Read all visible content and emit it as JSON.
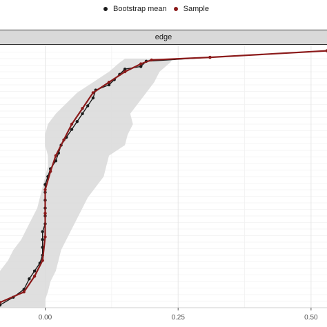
{
  "legend": {
    "items": [
      {
        "label": "Bootstrap mean",
        "color": "#1a1a1a"
      },
      {
        "label": "Sample",
        "color": "#8b1a1a"
      }
    ]
  },
  "chart_data": {
    "type": "line",
    "facet": "edge",
    "xlim": [
      -0.085,
      0.53
    ],
    "ylim": [
      0,
      1
    ],
    "x_ticks": [
      {
        "value": 0.0,
        "label": "0.00"
      },
      {
        "value": 0.25,
        "label": "0.25"
      },
      {
        "value": 0.5,
        "label": "0.50"
      }
    ],
    "grid": true,
    "legend_position": "top",
    "ribbon": {
      "color": "#d9d9d9",
      "y": [
        0.0,
        0.03,
        0.06,
        0.1,
        0.14,
        0.18,
        0.22,
        0.26,
        0.3,
        0.34,
        0.38,
        0.42,
        0.46,
        0.5,
        0.54,
        0.58,
        0.62,
        0.66,
        0.7,
        0.74,
        0.78,
        0.82,
        0.86,
        0.9,
        0.935,
        0.95
      ],
      "lo": [
        -0.085,
        -0.085,
        -0.085,
        -0.085,
        -0.085,
        -0.07,
        -0.06,
        -0.045,
        -0.035,
        -0.025,
        -0.015,
        -0.01,
        -0.005,
        0.0,
        0.005,
        0.005,
        0.0,
        0.0,
        0.005,
        0.02,
        0.04,
        0.06,
        0.09,
        0.12,
        0.14,
        0.15
      ],
      "hi": [
        0.0,
        0.0,
        0.005,
        0.01,
        0.02,
        0.025,
        0.03,
        0.04,
        0.05,
        0.06,
        0.07,
        0.08,
        0.095,
        0.11,
        0.115,
        0.12,
        0.15,
        0.155,
        0.165,
        0.16,
        0.175,
        0.19,
        0.205,
        0.215,
        0.235,
        0.24
      ]
    },
    "series": [
      {
        "name": "Bootstrap mean",
        "color": "#1a1a1a",
        "points": [
          [
            -0.085,
            0.01
          ],
          [
            -0.06,
            0.04
          ],
          [
            -0.04,
            0.07
          ],
          [
            -0.03,
            0.11
          ],
          [
            -0.02,
            0.14
          ],
          [
            -0.01,
            0.17
          ],
          [
            -0.005,
            0.2
          ],
          [
            -0.005,
            0.23
          ],
          [
            -0.005,
            0.26
          ],
          [
            -0.005,
            0.29
          ],
          [
            0.0,
            0.32
          ],
          [
            0.0,
            0.35
          ],
          [
            0.0,
            0.38
          ],
          [
            0.0,
            0.41
          ],
          [
            0.0,
            0.44
          ],
          [
            0.0,
            0.47
          ],
          [
            0.005,
            0.5
          ],
          [
            0.01,
            0.53
          ],
          [
            0.02,
            0.56
          ],
          [
            0.025,
            0.59
          ],
          [
            0.03,
            0.62
          ],
          [
            0.04,
            0.65
          ],
          [
            0.05,
            0.68
          ],
          [
            0.06,
            0.71
          ],
          [
            0.07,
            0.74
          ],
          [
            0.08,
            0.77
          ],
          [
            0.09,
            0.8
          ],
          [
            0.095,
            0.83
          ],
          [
            0.12,
            0.85
          ],
          [
            0.13,
            0.87
          ],
          [
            0.14,
            0.89
          ],
          [
            0.15,
            0.91
          ],
          [
            0.18,
            0.92
          ],
          [
            0.19,
            0.94
          ],
          [
            0.31,
            0.955
          ],
          [
            0.53,
            0.98
          ]
        ]
      },
      {
        "name": "Sample",
        "color": "#8b1a1a",
        "points": [
          [
            -0.085,
            0.02
          ],
          [
            -0.04,
            0.06
          ],
          [
            -0.02,
            0.12
          ],
          [
            -0.005,
            0.18
          ],
          [
            0.0,
            0.27
          ],
          [
            0.0,
            0.36
          ],
          [
            0.0,
            0.45
          ],
          [
            0.01,
            0.52
          ],
          [
            0.02,
            0.58
          ],
          [
            0.035,
            0.64
          ],
          [
            0.05,
            0.7
          ],
          [
            0.07,
            0.76
          ],
          [
            0.09,
            0.82
          ],
          [
            0.12,
            0.86
          ],
          [
            0.15,
            0.9
          ],
          [
            0.18,
            0.93
          ],
          [
            0.2,
            0.945
          ],
          [
            0.31,
            0.955
          ],
          [
            0.53,
            0.98
          ]
        ]
      }
    ]
  }
}
